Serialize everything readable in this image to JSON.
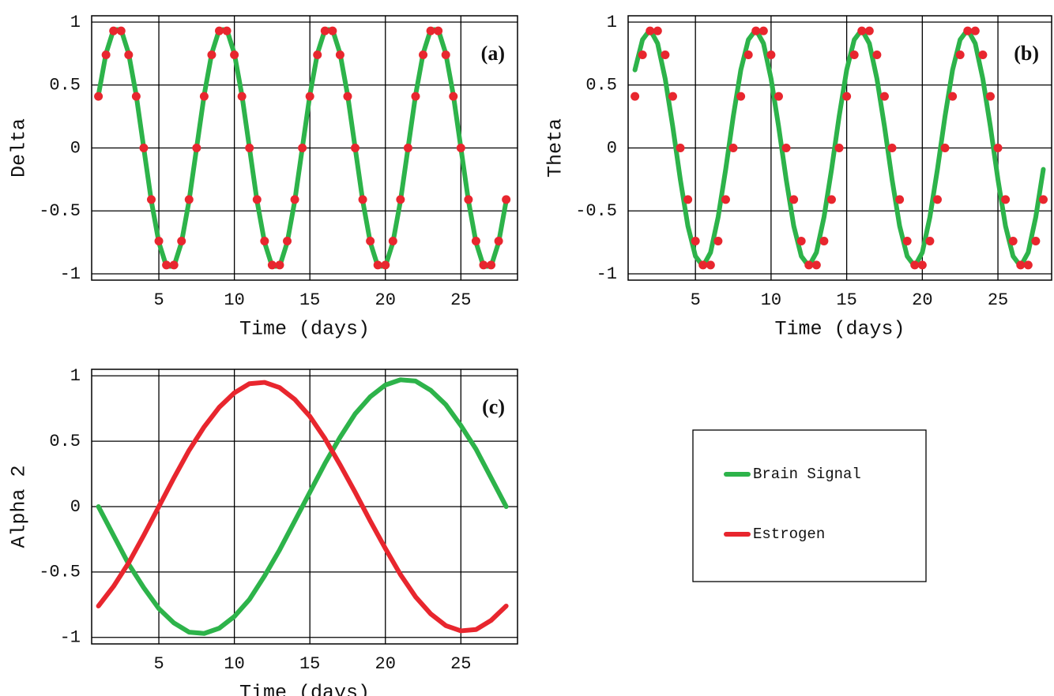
{
  "chart_data": [
    {
      "type": "line",
      "panel_label": "(a)",
      "xlabel": "Time (days)",
      "ylabel": "Delta",
      "xlim": [
        0.55,
        28.75
      ],
      "ylim": [
        -1.05,
        1.05
      ],
      "xticks": [
        5,
        10,
        15,
        20,
        25
      ],
      "yticks": [
        -1,
        -0.5,
        0,
        0.5,
        1
      ],
      "grid": true,
      "x": [
        1,
        1.5,
        2,
        2.5,
        3,
        3.5,
        4,
        4.5,
        5,
        5.5,
        6,
        6.5,
        7,
        7.5,
        8,
        8.5,
        9,
        9.5,
        10,
        10.5,
        11,
        11.5,
        12,
        12.5,
        13,
        13.5,
        14,
        14.5,
        15,
        15.5,
        16,
        16.5,
        17,
        17.5,
        18,
        18.5,
        19,
        19.5,
        20,
        20.5,
        21,
        21.5,
        22,
        22.5,
        23,
        23.5,
        24,
        24.5,
        25,
        25.5,
        26,
        26.5,
        27,
        27.5,
        28
      ],
      "series": [
        {
          "color": "#2db34a",
          "style": "line",
          "values": [
            0.42,
            0.75,
            0.94,
            0.94,
            0.75,
            0.42,
            0,
            -0.42,
            -0.75,
            -0.94,
            -0.94,
            -0.75,
            -0.42,
            0,
            0.42,
            0.75,
            0.94,
            0.94,
            0.75,
            0.42,
            0,
            -0.42,
            -0.75,
            -0.94,
            -0.94,
            -0.75,
            -0.42,
            0,
            0.42,
            0.75,
            0.94,
            0.94,
            0.75,
            0.42,
            0,
            -0.42,
            -0.75,
            -0.94,
            -0.94,
            -0.75,
            -0.42,
            0,
            0.42,
            0.75,
            0.94,
            0.94,
            0.75,
            0.42,
            0,
            -0.42,
            -0.75,
            -0.94,
            -0.94,
            -0.75,
            -0.42
          ]
        },
        {
          "color": "#e8262e",
          "style": "markers",
          "values": [
            0.41,
            0.74,
            0.93,
            0.93,
            0.74,
            0.41,
            0,
            -0.41,
            -0.74,
            -0.93,
            -0.93,
            -0.74,
            -0.41,
            0,
            0.41,
            0.74,
            0.93,
            0.93,
            0.74,
            0.41,
            0,
            -0.41,
            -0.74,
            -0.93,
            -0.93,
            -0.74,
            -0.41,
            0,
            0.41,
            0.74,
            0.93,
            0.93,
            0.74,
            0.41,
            0,
            -0.41,
            -0.74,
            -0.93,
            -0.93,
            -0.74,
            -0.41,
            0,
            0.41,
            0.74,
            0.93,
            0.93,
            0.74,
            0.41,
            0,
            -0.41,
            -0.74,
            -0.93,
            -0.93,
            -0.74,
            -0.41
          ]
        }
      ]
    },
    {
      "type": "line",
      "panel_label": "(b)",
      "xlabel": "Time (days)",
      "ylabel": "Theta",
      "xlim": [
        0.55,
        28.55
      ],
      "ylim": [
        -1.05,
        1.05
      ],
      "xticks": [
        5,
        10,
        15,
        20,
        25
      ],
      "yticks": [
        -1,
        -0.5,
        0,
        0.5,
        1
      ],
      "grid": true,
      "x": [
        1,
        1.5,
        2,
        2.5,
        3,
        3.5,
        4,
        4.5,
        5,
        5.5,
        6,
        6.5,
        7,
        7.5,
        8,
        8.5,
        9,
        9.5,
        10,
        10.5,
        11,
        11.5,
        12,
        12.5,
        13,
        13.5,
        14,
        14.5,
        15,
        15.5,
        16,
        16.5,
        17,
        17.5,
        18,
        18.5,
        19,
        19.5,
        20,
        20.5,
        21,
        21.5,
        22,
        22.5,
        23,
        23.5,
        24,
        24.5,
        25,
        25.5,
        26,
        26.5,
        27,
        27.5,
        28
      ],
      "series": [
        {
          "color": "#2db34a",
          "style": "line",
          "values": [
            0.62,
            0.86,
            0.94,
            0.83,
            0.55,
            0.17,
            -0.25,
            -0.62,
            -0.86,
            -0.94,
            -0.83,
            -0.55,
            -0.17,
            0.25,
            0.62,
            0.86,
            0.94,
            0.83,
            0.55,
            0.17,
            -0.25,
            -0.62,
            -0.86,
            -0.94,
            -0.83,
            -0.55,
            -0.17,
            0.25,
            0.62,
            0.86,
            0.94,
            0.83,
            0.55,
            0.17,
            -0.25,
            -0.62,
            -0.86,
            -0.94,
            -0.83,
            -0.55,
            -0.17,
            0.25,
            0.62,
            0.86,
            0.94,
            0.83,
            0.55,
            0.17,
            -0.25,
            -0.62,
            -0.86,
            -0.94,
            -0.83,
            -0.55,
            -0.17
          ]
        },
        {
          "color": "#e8262e",
          "style": "markers",
          "values": [
            0.41,
            0.74,
            0.93,
            0.93,
            0.74,
            0.41,
            0,
            -0.41,
            -0.74,
            -0.93,
            -0.93,
            -0.74,
            -0.41,
            0,
            0.41,
            0.74,
            0.93,
            0.93,
            0.74,
            0.41,
            0,
            -0.41,
            -0.74,
            -0.93,
            -0.93,
            -0.74,
            -0.41,
            0,
            0.41,
            0.74,
            0.93,
            0.93,
            0.74,
            0.41,
            0,
            -0.41,
            -0.74,
            -0.93,
            -0.93,
            -0.74,
            -0.41,
            0,
            0.41,
            0.74,
            0.93,
            0.93,
            0.74,
            0.41,
            0,
            -0.41,
            -0.74,
            -0.93,
            -0.93,
            -0.74,
            -0.41
          ]
        }
      ]
    },
    {
      "type": "line",
      "panel_label": "(c)",
      "xlabel": "Time (days)",
      "ylabel": "Alpha 2",
      "xlim": [
        0.55,
        28.75
      ],
      "ylim": [
        -1.05,
        1.05
      ],
      "xticks": [
        5,
        10,
        15,
        20,
        25
      ],
      "yticks": [
        -1,
        -0.5,
        0,
        0.5,
        1
      ],
      "grid": true,
      "legend": "right",
      "x": [
        1,
        2,
        3,
        4,
        5,
        6,
        7,
        8,
        9,
        10,
        11,
        12,
        13,
        14,
        15,
        16,
        17,
        18,
        19,
        20,
        21,
        22,
        23,
        24,
        25,
        26,
        27,
        28
      ],
      "series": [
        {
          "name": "Brain Signal",
          "color": "#2db34a",
          "style": "line",
          "values": [
            0,
            -0.22,
            -0.44,
            -0.62,
            -0.78,
            -0.89,
            -0.96,
            -0.97,
            -0.93,
            -0.84,
            -0.71,
            -0.53,
            -0.33,
            -0.11,
            0.11,
            0.33,
            0.53,
            0.71,
            0.84,
            0.93,
            0.97,
            0.96,
            0.89,
            0.78,
            0.62,
            0.44,
            0.22,
            0
          ]
        },
        {
          "name": "Estrogen",
          "color": "#e8262e",
          "style": "line",
          "values": [
            -0.76,
            -0.61,
            -0.43,
            -0.22,
            0,
            0.22,
            0.43,
            0.61,
            0.76,
            0.87,
            0.94,
            0.95,
            0.91,
            0.82,
            0.69,
            0.52,
            0.32,
            0.11,
            -0.11,
            -0.32,
            -0.52,
            -0.69,
            -0.82,
            -0.91,
            -0.95,
            -0.94,
            -0.87,
            -0.76
          ]
        }
      ]
    }
  ]
}
